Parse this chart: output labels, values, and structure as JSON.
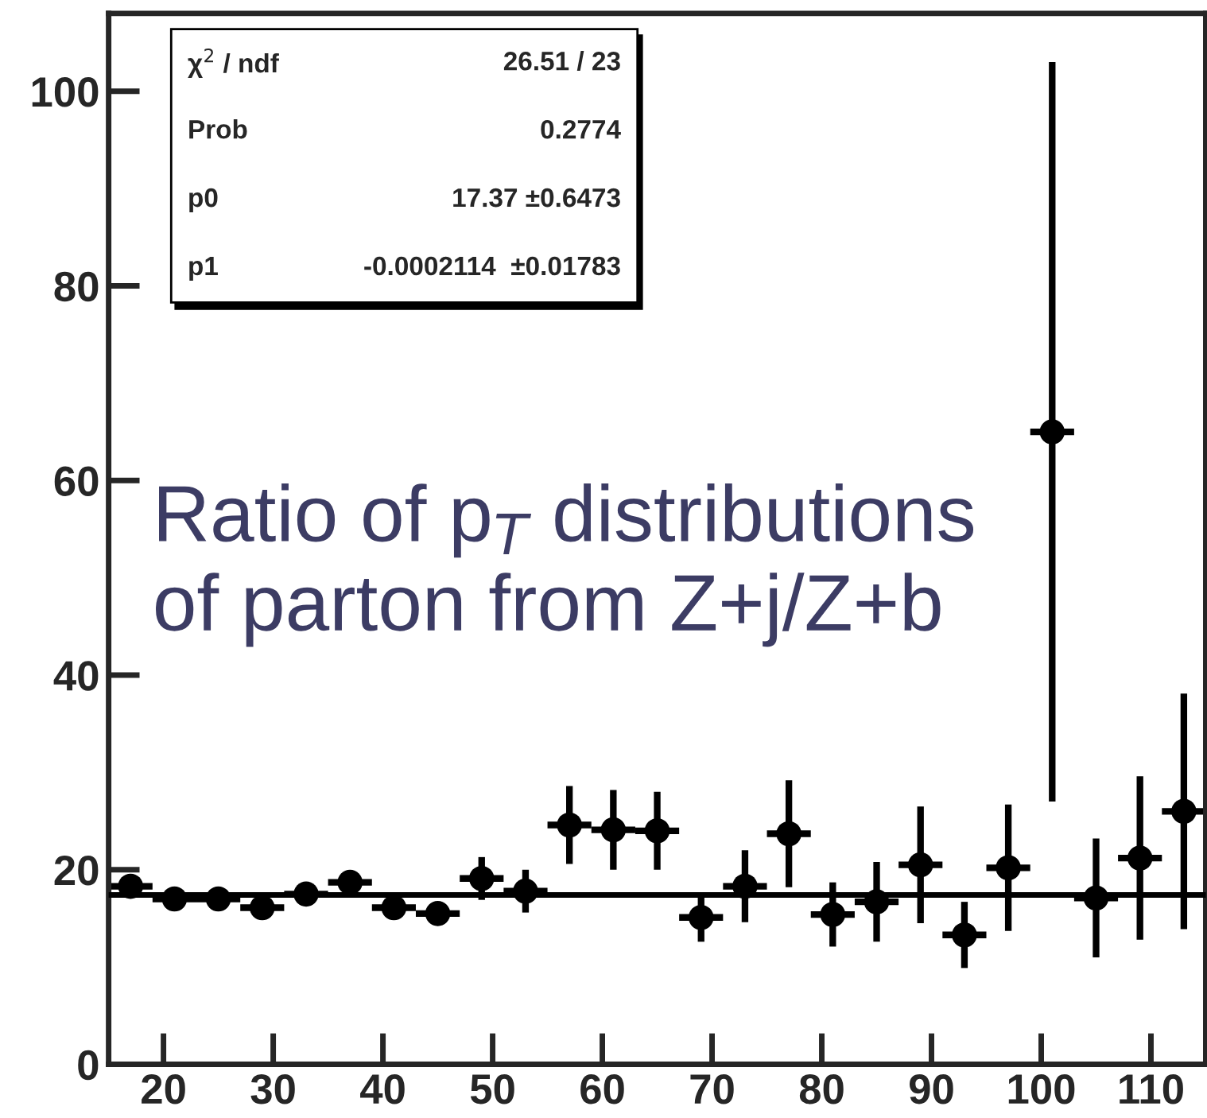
{
  "chart_data": {
    "type": "scatter",
    "x": [
      17,
      21,
      25,
      29,
      33,
      37,
      41,
      45,
      49,
      53,
      57,
      61,
      65,
      69,
      73,
      77,
      81,
      85,
      89,
      93,
      97,
      101,
      105,
      109,
      113
    ],
    "series": [
      {
        "color": "#000000",
        "marker": "circle",
        "values": [
          18.3,
          17.0,
          17.0,
          16.1,
          17.5,
          18.7,
          16.1,
          15.5,
          19.1,
          17.8,
          24.6,
          24.1,
          24.0,
          15.1,
          18.3,
          23.7,
          15.4,
          16.7,
          20.5,
          13.3,
          20.2,
          65.0,
          17.1,
          21.2,
          26.0
        ],
        "errors": [
          0.7,
          0.7,
          0.7,
          0.7,
          0.8,
          0.9,
          0.9,
          0.9,
          2.2,
          2.2,
          4.0,
          4.1,
          4.0,
          2.5,
          3.7,
          5.5,
          3.3,
          4.1,
          6.0,
          3.4,
          6.5,
          38.0,
          6.1,
          8.4,
          12.1
        ],
        "xerrors": [
          2,
          2,
          2,
          2,
          2,
          2,
          2,
          2,
          2,
          2,
          2,
          2,
          2,
          2,
          2,
          2,
          2,
          2,
          2,
          2,
          2,
          2,
          2,
          2,
          2
        ]
      },
      {
        "type": "line",
        "color": "#000000",
        "x": [
          15,
          115
        ],
        "values": [
          17.4,
          17.4
        ]
      }
    ],
    "xlim": [
      15,
      115
    ],
    "ylim": [
      0,
      108
    ],
    "xticks": [
      20,
      30,
      40,
      50,
      60,
      70,
      80,
      90,
      100,
      110
    ],
    "yticks": [
      0,
      20,
      40,
      60,
      80,
      100
    ],
    "annotations": [
      "χ$^{2}$ / ndf",
      "26.51 / 23",
      "Prob",
      "0.2774",
      "p0",
      "17.37 ±0.6473",
      "p1",
      "-0.0002114  ±0.01783",
      "Ratio of p$_{T}$ distributions\nof parton from Z+j/Z+b"
    ]
  }
}
